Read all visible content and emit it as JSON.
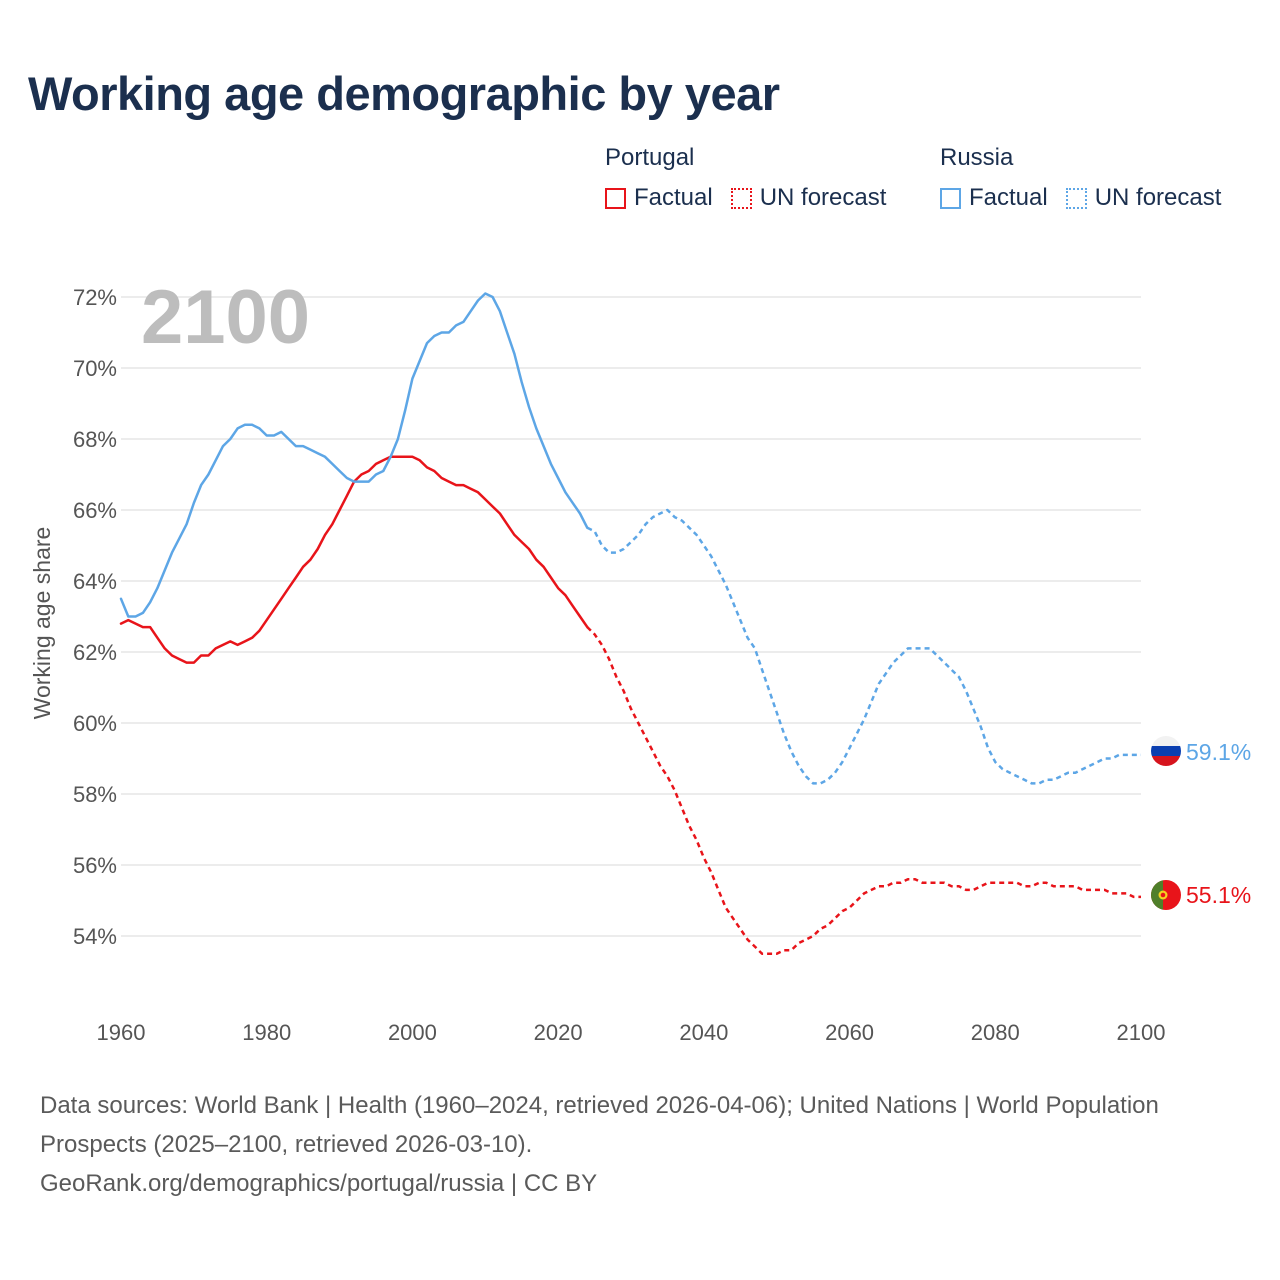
{
  "title": "Working age demographic by year",
  "legend": {
    "groups": [
      {
        "country": "Portugal",
        "color": "#e8141a",
        "items": [
          {
            "label": "Factual",
            "style": "solid"
          },
          {
            "label": "UN forecast",
            "style": "dotted"
          }
        ]
      },
      {
        "country": "Russia",
        "color": "#5da6e6",
        "items": [
          {
            "label": "Factual",
            "style": "solid"
          },
          {
            "label": "UN forecast",
            "style": "dotted"
          }
        ]
      }
    ]
  },
  "year_display": "2100",
  "footer": {
    "sources": "Data sources: World Bank | Health (1960–2024, retrieved 2026-04-06); United Nations | World Population Prospects (2025–2100, retrieved 2026-03-10).",
    "attribution": "GeoRank.org/demographics/portugal/russia | CC BY"
  },
  "chart_data": {
    "type": "line",
    "title": "Working age demographic by year",
    "xlabel": "",
    "ylabel": "Working age share",
    "xlim": [
      1960,
      2100
    ],
    "ylim": [
      52,
      72.6
    ],
    "x_ticks": [
      1960,
      1980,
      2000,
      2020,
      2040,
      2060,
      2080,
      2100
    ],
    "x_tick_labels": [
      "1960",
      "1980",
      "2000",
      "2020",
      "2040",
      "2060",
      "2080",
      "2100"
    ],
    "y_ticks": [
      54,
      56,
      58,
      60,
      62,
      64,
      66,
      68,
      70,
      72
    ],
    "y_tick_labels": [
      "54%",
      "56%",
      "58%",
      "60%",
      "62%",
      "64%",
      "66%",
      "68%",
      "70%",
      "72%"
    ],
    "grid": true,
    "series": [
      {
        "name": "Portugal",
        "color": "#e8141a",
        "end_label": "55.1%",
        "flag": "portugal",
        "factual": {
          "x": [
            1960,
            1961,
            1962,
            1963,
            1964,
            1965,
            1966,
            1967,
            1968,
            1969,
            1970,
            1971,
            1972,
            1973,
            1974,
            1975,
            1976,
            1977,
            1978,
            1979,
            1980,
            1981,
            1982,
            1983,
            1984,
            1985,
            1986,
            1987,
            1988,
            1989,
            1990,
            1991,
            1992,
            1993,
            1994,
            1995,
            1996,
            1997,
            1998,
            1999,
            2000,
            2001,
            2002,
            2003,
            2004,
            2005,
            2006,
            2007,
            2008,
            2009,
            2010,
            2011,
            2012,
            2013,
            2014,
            2015,
            2016,
            2017,
            2018,
            2019,
            2020,
            2021,
            2022,
            2023,
            2024
          ],
          "y": [
            62.8,
            62.9,
            62.8,
            62.7,
            62.7,
            62.4,
            62.1,
            61.9,
            61.8,
            61.7,
            61.7,
            61.9,
            61.9,
            62.1,
            62.2,
            62.3,
            62.2,
            62.3,
            62.4,
            62.6,
            62.9,
            63.2,
            63.5,
            63.8,
            64.1,
            64.4,
            64.6,
            64.9,
            65.3,
            65.6,
            66.0,
            66.4,
            66.8,
            67.0,
            67.1,
            67.3,
            67.4,
            67.5,
            67.5,
            67.5,
            67.5,
            67.4,
            67.2,
            67.1,
            66.9,
            66.8,
            66.7,
            66.7,
            66.6,
            66.5,
            66.3,
            66.1,
            65.9,
            65.6,
            65.3,
            65.1,
            64.9,
            64.6,
            64.4,
            64.1,
            63.8,
            63.6,
            63.3,
            63.0,
            62.7
          ]
        },
        "forecast": {
          "x": [
            2024,
            2025,
            2026,
            2027,
            2028,
            2029,
            2030,
            2031,
            2032,
            2033,
            2034,
            2035,
            2036,
            2037,
            2038,
            2039,
            2040,
            2041,
            2042,
            2043,
            2044,
            2045,
            2046,
            2047,
            2048,
            2049,
            2050,
            2051,
            2052,
            2053,
            2054,
            2055,
            2056,
            2057,
            2058,
            2059,
            2060,
            2061,
            2062,
            2063,
            2064,
            2065,
            2066,
            2067,
            2068,
            2069,
            2070,
            2071,
            2072,
            2073,
            2074,
            2075,
            2076,
            2077,
            2078,
            2079,
            2080,
            2081,
            2082,
            2083,
            2084,
            2085,
            2086,
            2087,
            2088,
            2089,
            2090,
            2091,
            2092,
            2093,
            2094,
            2095,
            2096,
            2097,
            2098,
            2099,
            2100
          ],
          "y": [
            62.7,
            62.5,
            62.2,
            61.8,
            61.3,
            60.9,
            60.4,
            60.0,
            59.6,
            59.2,
            58.8,
            58.5,
            58.1,
            57.6,
            57.1,
            56.7,
            56.2,
            55.8,
            55.3,
            54.8,
            54.5,
            54.2,
            53.9,
            53.7,
            53.5,
            53.5,
            53.5,
            53.6,
            53.6,
            53.8,
            53.9,
            54.0,
            54.2,
            54.3,
            54.5,
            54.7,
            54.8,
            55.0,
            55.2,
            55.3,
            55.4,
            55.4,
            55.5,
            55.5,
            55.6,
            55.6,
            55.5,
            55.5,
            55.5,
            55.5,
            55.4,
            55.4,
            55.3,
            55.3,
            55.4,
            55.5,
            55.5,
            55.5,
            55.5,
            55.5,
            55.4,
            55.4,
            55.5,
            55.5,
            55.4,
            55.4,
            55.4,
            55.4,
            55.3,
            55.3,
            55.3,
            55.3,
            55.2,
            55.2,
            55.2,
            55.1,
            55.1
          ]
        }
      },
      {
        "name": "Russia",
        "color": "#5da6e6",
        "end_label": "59.1%",
        "flag": "russia",
        "factual": {
          "x": [
            1960,
            1961,
            1962,
            1963,
            1964,
            1965,
            1966,
            1967,
            1968,
            1969,
            1970,
            1971,
            1972,
            1973,
            1974,
            1975,
            1976,
            1977,
            1978,
            1979,
            1980,
            1981,
            1982,
            1983,
            1984,
            1985,
            1986,
            1987,
            1988,
            1989,
            1990,
            1991,
            1992,
            1993,
            1994,
            1995,
            1996,
            1997,
            1998,
            1999,
            2000,
            2001,
            2002,
            2003,
            2004,
            2005,
            2006,
            2007,
            2008,
            2009,
            2010,
            2011,
            2012,
            2013,
            2014,
            2015,
            2016,
            2017,
            2018,
            2019,
            2020,
            2021,
            2022,
            2023,
            2024
          ],
          "y": [
            63.5,
            63.0,
            63.0,
            63.1,
            63.4,
            63.8,
            64.3,
            64.8,
            65.2,
            65.6,
            66.2,
            66.7,
            67.0,
            67.4,
            67.8,
            68.0,
            68.3,
            68.4,
            68.4,
            68.3,
            68.1,
            68.1,
            68.2,
            68.0,
            67.8,
            67.8,
            67.7,
            67.6,
            67.5,
            67.3,
            67.1,
            66.9,
            66.8,
            66.8,
            66.8,
            67.0,
            67.1,
            67.5,
            68.0,
            68.8,
            69.7,
            70.2,
            70.7,
            70.9,
            71.0,
            71.0,
            71.2,
            71.3,
            71.6,
            71.9,
            72.1,
            72.0,
            71.6,
            71.0,
            70.4,
            69.6,
            68.9,
            68.3,
            67.8,
            67.3,
            66.9,
            66.5,
            66.2,
            65.9,
            65.5
          ]
        },
        "forecast": {
          "x": [
            2024,
            2025,
            2026,
            2027,
            2028,
            2029,
            2030,
            2031,
            2032,
            2033,
            2034,
            2035,
            2036,
            2037,
            2038,
            2039,
            2040,
            2041,
            2042,
            2043,
            2044,
            2045,
            2046,
            2047,
            2048,
            2049,
            2050,
            2051,
            2052,
            2053,
            2054,
            2055,
            2056,
            2057,
            2058,
            2059,
            2060,
            2061,
            2062,
            2063,
            2064,
            2065,
            2066,
            2067,
            2068,
            2069,
            2070,
            2071,
            2072,
            2073,
            2074,
            2075,
            2076,
            2077,
            2078,
            2079,
            2080,
            2081,
            2082,
            2083,
            2084,
            2085,
            2086,
            2087,
            2088,
            2089,
            2090,
            2091,
            2092,
            2093,
            2094,
            2095,
            2096,
            2097,
            2098,
            2099,
            2100
          ],
          "y": [
            65.5,
            65.4,
            65.0,
            64.8,
            64.8,
            64.9,
            65.1,
            65.3,
            65.6,
            65.8,
            65.9,
            66.0,
            65.8,
            65.7,
            65.5,
            65.3,
            65.0,
            64.7,
            64.3,
            63.9,
            63.4,
            62.9,
            62.4,
            62.1,
            61.5,
            60.9,
            60.3,
            59.7,
            59.2,
            58.8,
            58.5,
            58.3,
            58.3,
            58.4,
            58.6,
            58.9,
            59.3,
            59.7,
            60.1,
            60.6,
            61.1,
            61.4,
            61.7,
            61.9,
            62.1,
            62.1,
            62.1,
            62.1,
            61.9,
            61.7,
            61.5,
            61.3,
            60.9,
            60.4,
            59.9,
            59.3,
            58.9,
            58.7,
            58.6,
            58.5,
            58.4,
            58.3,
            58.3,
            58.4,
            58.4,
            58.5,
            58.6,
            58.6,
            58.7,
            58.8,
            58.9,
            59.0,
            59.0,
            59.1,
            59.1,
            59.1,
            59.1
          ]
        }
      }
    ]
  }
}
